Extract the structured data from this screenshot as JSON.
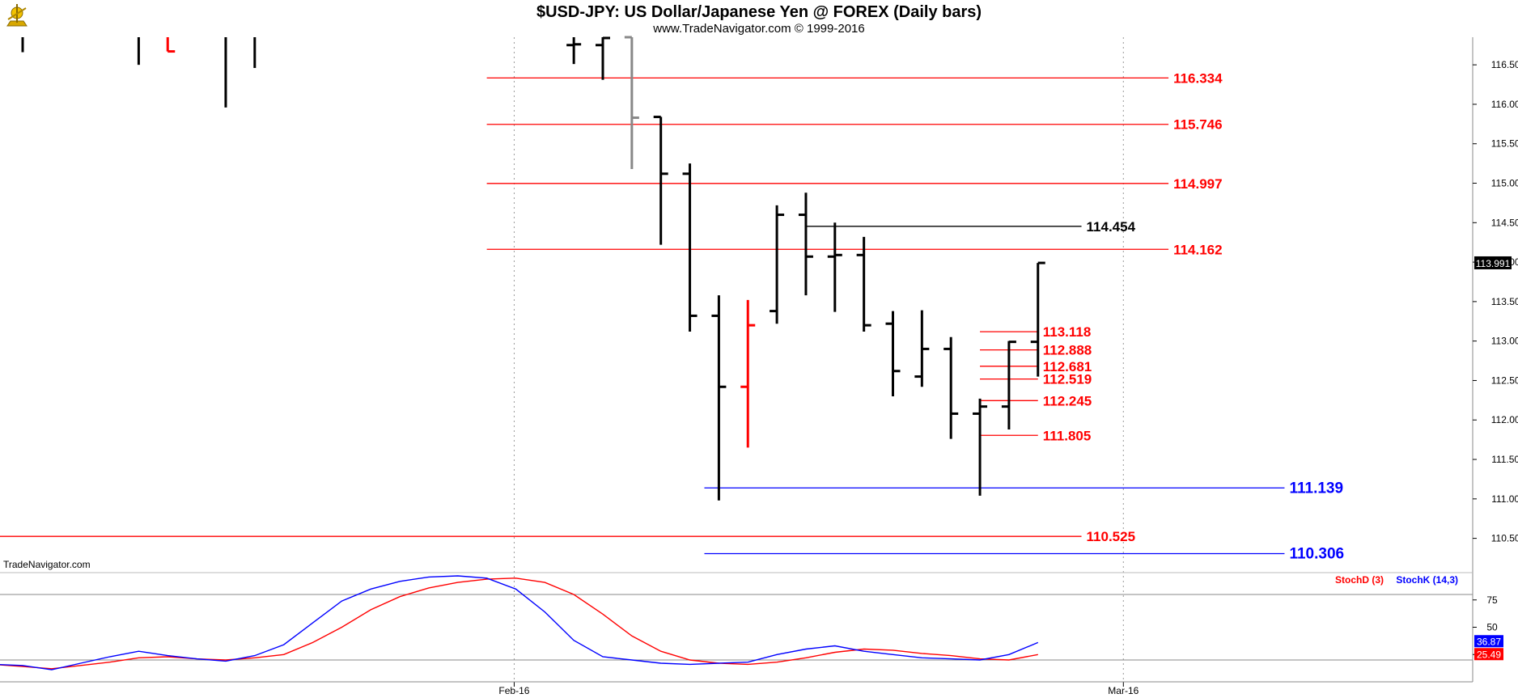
{
  "header": {
    "title": "$USD-JPY:  US Dollar/Japanese Yen @ FOREX  (Daily bars)",
    "subtitle": "www.TradeNavigator.com © 1999-2016",
    "watermark": "TradeNavigator.com",
    "logo_icon": "sextant-logo-icon"
  },
  "chart_data": [
    {
      "type": "ohlc",
      "title": "$USD-JPY:  US Dollar/Japanese Yen @ FOREX  (Daily bars)",
      "ylim": [
        110.25,
        116.85
      ],
      "y_ticks": [
        "116.500",
        "116.000",
        "115.500",
        "115.000",
        "114.500",
        "114.000",
        "113.500",
        "113.000",
        "112.500",
        "112.000",
        "111.500",
        "111.000",
        "110.500"
      ],
      "x_labels": [
        {
          "label": "Feb-16",
          "bar": 17
        },
        {
          "label": "Mar-16",
          "bar": 38
        }
      ],
      "last_price": "113.991",
      "bars": [
        {
          "i": 0,
          "h": 116.85,
          "l": 116.66,
          "o": null,
          "c": null,
          "color": "#000"
        },
        {
          "i": 4,
          "h": 116.85,
          "l": 116.5,
          "o": null,
          "c": null,
          "color": "#000"
        },
        {
          "i": 5,
          "h": 116.85,
          "l": 116.67,
          "o": null,
          "c": 116.67,
          "color": "#ff0000"
        },
        {
          "i": 7,
          "h": 116.85,
          "l": 115.96,
          "o": null,
          "c": null,
          "color": "#000"
        },
        {
          "i": 8,
          "h": 116.85,
          "l": 116.46,
          "o": null,
          "c": null,
          "color": "#000"
        },
        {
          "i": 19,
          "h": 116.85,
          "l": 116.51,
          "o": 116.75,
          "c": 116.76,
          "color": "#000"
        },
        {
          "i": 20,
          "h": 116.85,
          "l": 116.31,
          "o": 116.75,
          "c": 116.84,
          "color": "#000"
        },
        {
          "i": 21,
          "h": 116.85,
          "l": 115.18,
          "o": 116.85,
          "c": 115.83,
          "color": "#888888"
        },
        {
          "i": 22,
          "h": 115.84,
          "l": 114.22,
          "o": 115.84,
          "c": 115.12,
          "color": "#000"
        },
        {
          "i": 23,
          "h": 115.25,
          "l": 113.12,
          "o": 115.12,
          "c": 113.32,
          "color": "#000"
        },
        {
          "i": 24,
          "h": 113.58,
          "l": 110.98,
          "o": 113.32,
          "c": 112.42,
          "color": "#000"
        },
        {
          "i": 25,
          "h": 113.52,
          "l": 111.65,
          "o": 112.42,
          "c": 113.2,
          "color": "#ff0000"
        },
        {
          "i": 26,
          "h": 114.72,
          "l": 113.22,
          "o": 113.38,
          "c": 114.6,
          "color": "#000"
        },
        {
          "i": 27,
          "h": 114.88,
          "l": 113.58,
          "o": 114.6,
          "c": 114.07,
          "color": "#000"
        },
        {
          "i": 28,
          "h": 114.5,
          "l": 113.37,
          "o": 114.07,
          "c": 114.09,
          "color": "#000"
        },
        {
          "i": 29,
          "h": 114.32,
          "l": 113.12,
          "o": 114.09,
          "c": 113.2,
          "color": "#000"
        },
        {
          "i": 30,
          "h": 113.38,
          "l": 112.3,
          "o": 113.22,
          "c": 112.62,
          "color": "#000"
        },
        {
          "i": 31,
          "h": 113.39,
          "l": 112.42,
          "o": 112.55,
          "c": 112.9,
          "color": "#000"
        },
        {
          "i": 32,
          "h": 113.05,
          "l": 111.76,
          "o": 112.9,
          "c": 112.08,
          "color": "#000"
        },
        {
          "i": 33,
          "h": 112.27,
          "l": 111.04,
          "o": 112.08,
          "c": 112.17,
          "color": "#000"
        },
        {
          "i": 34,
          "h": 113.0,
          "l": 111.88,
          "o": 112.17,
          "c": 112.99,
          "color": "#000"
        },
        {
          "i": 35,
          "h": 113.99,
          "l": 112.55,
          "o": 112.99,
          "c": 113.99,
          "color": "#000"
        }
      ],
      "levels": [
        {
          "value": 116.334,
          "label": "116.334",
          "color": "#ff0000",
          "x_from_bar": 16,
          "x_to_bar": 39.5,
          "size": "normal"
        },
        {
          "value": 115.746,
          "label": "115.746",
          "color": "#ff0000",
          "x_from_bar": 16,
          "x_to_bar": 39.5,
          "size": "normal"
        },
        {
          "value": 114.997,
          "label": "114.997",
          "color": "#ff0000",
          "x_from_bar": 16,
          "x_to_bar": 39.5,
          "size": "normal"
        },
        {
          "value": 114.454,
          "label": "114.454",
          "color": "#000000",
          "x_from_bar": 27,
          "x_to_bar": 36.5,
          "size": "normal"
        },
        {
          "value": 114.162,
          "label": "114.162",
          "color": "#ff0000",
          "x_from_bar": 16,
          "x_to_bar": 39.5,
          "size": "normal"
        },
        {
          "value": 113.118,
          "label": "113.118",
          "color": "#ff0000",
          "x_from_bar": 33,
          "x_to_bar": 35,
          "size": "normal"
        },
        {
          "value": 112.888,
          "label": "112.888",
          "color": "#ff0000",
          "x_from_bar": 33,
          "x_to_bar": 35,
          "size": "normal"
        },
        {
          "value": 112.681,
          "label": "112.681",
          "color": "#ff0000",
          "x_from_bar": 33,
          "x_to_bar": 35,
          "size": "normal"
        },
        {
          "value": 112.519,
          "label": "112.519",
          "color": "#ff0000",
          "x_from_bar": 33,
          "x_to_bar": 35,
          "size": "normal"
        },
        {
          "value": 112.245,
          "label": "112.245",
          "color": "#ff0000",
          "x_from_bar": 33,
          "x_to_bar": 35,
          "size": "normal"
        },
        {
          "value": 111.805,
          "label": "111.805",
          "color": "#ff0000",
          "x_from_bar": 33,
          "x_to_bar": 35,
          "size": "normal"
        },
        {
          "value": 111.139,
          "label": "111.139",
          "color": "#0000ff",
          "x_from_bar": 23.5,
          "x_to_bar": 43.5,
          "size": "big"
        },
        {
          "value": 110.525,
          "label": "110.525",
          "color": "#ff0000",
          "x_from_bar": -0.5,
          "x_to_bar": 36.5,
          "size": "normal"
        },
        {
          "value": 110.306,
          "label": "110.306",
          "color": "#0000ff",
          "x_from_bar": 23.5,
          "x_to_bar": 43.5,
          "size": "big"
        }
      ]
    },
    {
      "type": "line",
      "title": "",
      "ylim": [
        0,
        100
      ],
      "y_ticks": [
        "75",
        "50",
        "25"
      ],
      "reference_lines": [
        80,
        20
      ],
      "series": [
        {
          "name": "StochD (3)",
          "color": "#ff0000",
          "points": [
            [
              -1,
              16
            ],
            [
              0,
              14
            ],
            [
              1,
              12
            ],
            [
              2,
              15
            ],
            [
              3,
              18
            ],
            [
              4,
              22
            ],
            [
              5,
              23
            ],
            [
              6,
              21
            ],
            [
              7,
              20
            ],
            [
              8,
              22
            ],
            [
              9,
              25
            ],
            [
              10,
              36
            ],
            [
              11,
              50
            ],
            [
              12,
              66
            ],
            [
              13,
              78
            ],
            [
              14,
              86
            ],
            [
              15,
              91
            ],
            [
              16,
              94
            ],
            [
              17,
              95
            ],
            [
              18,
              91
            ],
            [
              19,
              80
            ],
            [
              20,
              62
            ],
            [
              21,
              42
            ],
            [
              22,
              28
            ],
            [
              23,
              20
            ],
            [
              24,
              17
            ],
            [
              25,
              16
            ],
            [
              26,
              18
            ],
            [
              27,
              22
            ],
            [
              28,
              27
            ],
            [
              29,
              30
            ],
            [
              30,
              29
            ],
            [
              31,
              26
            ],
            [
              32,
              24
            ],
            [
              33,
              21
            ],
            [
              34,
              20
            ],
            [
              35,
              25
            ]
          ]
        },
        {
          "name": "StochK (14,3)",
          "color": "#0000ff",
          "points": [
            [
              -1,
              16
            ],
            [
              0,
              15
            ],
            [
              1,
              11
            ],
            [
              2,
              17
            ],
            [
              3,
              23
            ],
            [
              4,
              28
            ],
            [
              5,
              24
            ],
            [
              6,
              21
            ],
            [
              7,
              19
            ],
            [
              8,
              24
            ],
            [
              9,
              34
            ],
            [
              10,
              54
            ],
            [
              11,
              74
            ],
            [
              12,
              85
            ],
            [
              13,
              92
            ],
            [
              14,
              96
            ],
            [
              15,
              97
            ],
            [
              16,
              95
            ],
            [
              17,
              85
            ],
            [
              18,
              64
            ],
            [
              19,
              38
            ],
            [
              20,
              23
            ],
            [
              21,
              20
            ],
            [
              22,
              17
            ],
            [
              23,
              16
            ],
            [
              24,
              17
            ],
            [
              25,
              18
            ],
            [
              26,
              25
            ],
            [
              27,
              30
            ],
            [
              28,
              33
            ],
            [
              29,
              28
            ],
            [
              30,
              25
            ],
            [
              31,
              22
            ],
            [
              32,
              21
            ],
            [
              33,
              20
            ],
            [
              34,
              25
            ],
            [
              35,
              36
            ]
          ]
        }
      ],
      "last_values": [
        {
          "label": "36.87",
          "color": "#0000ff"
        },
        {
          "label": "25.49",
          "color": "#ff0000"
        }
      ]
    }
  ]
}
